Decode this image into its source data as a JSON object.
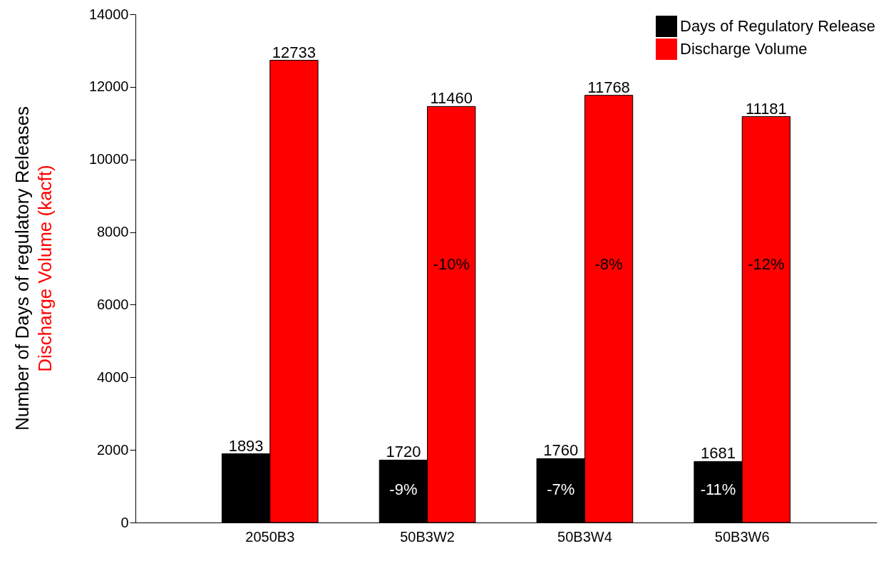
{
  "chart_data": {
    "type": "bar",
    "categories": [
      "2050B3",
      "50B3W2",
      "50B3W4",
      "50B3W6"
    ],
    "ylabel": [
      "Number of Days of regulatory Releases",
      "Discharge Volume (kacft)"
    ],
    "series": [
      {
        "name": "Days of Regulatory Release",
        "color": "#000000",
        "values": [
          1893,
          1720,
          1760,
          1681
        ]
      },
      {
        "name": "Discharge Volume",
        "color": "#ff0000",
        "values": [
          12733,
          11460,
          11768,
          11181
        ]
      }
    ],
    "ylim": [
      0,
      14000
    ],
    "yticks": [
      0,
      2000,
      4000,
      6000,
      8000,
      10000,
      12000,
      14000
    ],
    "data_labels": true,
    "grid": false,
    "legend": "top right",
    "annotations": [
      {
        "text": "-10%",
        "x": "50B3W2",
        "y": 7100
      },
      {
        "text": "-8%",
        "x": "50B3W4",
        "y": 7100
      },
      {
        "text": "-12%",
        "x": "50B3W6",
        "y": 7100
      },
      {
        "text": "-9%",
        "x": "50B3W2",
        "y": 900
      },
      {
        "text": "-7%",
        "x": "50B3W4",
        "y": 900
      },
      {
        "text": "-11%",
        "x": "50B3W6",
        "y": 900
      }
    ]
  }
}
